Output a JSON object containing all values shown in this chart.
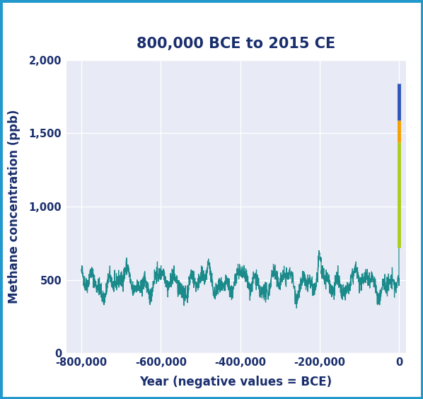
{
  "title": "800,000 BCE to 2015 CE",
  "xlabel": "Year (negative values = BCE)",
  "ylabel": "Methane concentration (ppb)",
  "xlim": [
    -840000,
    18000
  ],
  "ylim": [
    0,
    2000
  ],
  "yticks": [
    0,
    500,
    1000,
    1500,
    2000
  ],
  "ytick_labels": [
    "0",
    "500",
    "1,000",
    "1,500",
    "2,000"
  ],
  "xticks": [
    -800000,
    -600000,
    -400000,
    -200000,
    0
  ],
  "xtick_labels": [
    "-800,000",
    "-600,000",
    "-400,000",
    "-200,000",
    "0"
  ],
  "plot_bg_color": "#e8eaf5",
  "outer_bg": "#ffffff",
  "line_color": "#1a8a8a",
  "title_color": "#1a2e6e",
  "axis_label_color": "#1a2e6e",
  "tick_label_color": "#1a2e6e",
  "grid_color": "#ffffff",
  "border_color": "#2299cc",
  "modern_segments": [
    {
      "ymin": 720,
      "ymax": 1440,
      "color": "#aacf1a"
    },
    {
      "ymin": 1440,
      "ymax": 1590,
      "color": "#f5a000"
    },
    {
      "ymin": 1590,
      "ymax": 1840,
      "color": "#3355bb"
    }
  ],
  "modern_x": 0,
  "title_fontsize": 15,
  "axis_label_fontsize": 12,
  "tick_fontsize": 10.5
}
